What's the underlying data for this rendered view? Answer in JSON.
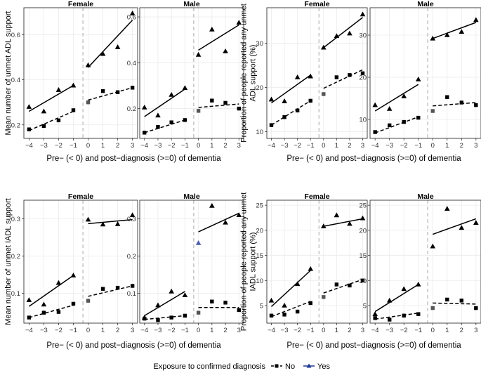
{
  "legend": {
    "title": "Exposure to confirmed diagnosis",
    "no_label": "No",
    "yes_label": "Yes",
    "colors": {
      "no": "#000000",
      "yes": "#1f3a93"
    }
  },
  "style": {
    "panel_border": "#333333",
    "grid_color": "#ebebeb",
    "reference_line_color": "#bbbbbb",
    "mark_color": "#000000"
  },
  "chart_data": [
    {
      "type": "line",
      "id": "adl-mean",
      "ylabel": "Mean number of unmet ADL support",
      "xlabel": "Pre− (< 0) and post−diagnosis (>=0) of dementia",
      "x": [
        -4,
        -3,
        -2,
        -1,
        0,
        1,
        2,
        3
      ],
      "xticks": [
        "−4",
        "−3",
        "−2",
        "−1",
        "0",
        "1",
        "2",
        "3"
      ],
      "facets": [
        {
          "title": "Female",
          "ylim": [
            0.14,
            0.72
          ],
          "yticks": [
            0.2,
            0.4,
            0.6
          ],
          "yticklabels": [
            "0.2",
            "0.4",
            "0.6"
          ],
          "series": [
            {
              "name": "No",
              "values": [
                0.18,
                0.195,
                0.22,
                0.265,
                0.3,
                0.35,
                0.345,
                0.365
              ],
              "pre_fit": [
                0.175,
                0.26
              ],
              "post_fit": [
                0.31,
                0.365
              ]
            },
            {
              "name": "Yes",
              "values": [
                0.28,
                0.26,
                0.355,
                0.375,
                0.465,
                0.515,
                0.545,
                0.695
              ],
              "pre_fit": [
                0.26,
                0.375
              ],
              "post_fit": [
                0.455,
                0.665
              ]
            }
          ]
        },
        {
          "title": "Male",
          "ylim": [
            0.07,
            0.64
          ],
          "yticks": [
            0.2,
            0.4,
            0.6
          ],
          "yticklabels": [
            "0.2",
            "0.4",
            "0.6"
          ],
          "series": [
            {
              "name": "No",
              "values": [
                0.095,
                0.12,
                0.14,
                0.15,
                0.19,
                0.235,
                0.225,
                0.2
              ],
              "pre_fit": [
                0.095,
                0.15
              ],
              "post_fit": [
                0.205,
                0.22
              ]
            },
            {
              "name": "Yes",
              "values": [
                0.205,
                0.17,
                0.26,
                0.29,
                0.435,
                0.545,
                0.45,
                0.575
              ],
              "pre_fit": [
                0.165,
                0.285
              ],
              "post_fit": [
                0.455,
                0.565
              ]
            }
          ]
        }
      ]
    },
    {
      "type": "line",
      "id": "adl-prop",
      "ylabel": "Proportion of people reported any unmet ADL support (%)",
      "xlabel": "Pre− (< 0) and post−diagnosis (>=0) of dementia",
      "x": [
        -4,
        -3,
        -2,
        -1,
        0,
        1,
        2,
        3
      ],
      "xticks": [
        "−4",
        "−3",
        "−2",
        "−1",
        "0",
        "1",
        "2",
        "3"
      ],
      "facets": [
        {
          "title": "Female",
          "ylim": [
            8.5,
            38
          ],
          "yticks": [
            10,
            20,
            30
          ],
          "yticklabels": [
            "10",
            "20",
            "30"
          ],
          "series": [
            {
              "name": "No",
              "values": [
                11.5,
                13.3,
                14.8,
                17.0,
                18.5,
                22.3,
                22.8,
                23.2
              ],
              "pre_fit": [
                11.5,
                17.0
              ],
              "post_fit": [
                19.8,
                24.0
              ]
            },
            {
              "name": "Yes",
              "values": [
                17.3,
                16.9,
                22.3,
                22.5,
                29.0,
                31.6,
                32.2,
                36.5
              ],
              "pre_fit": [
                16.5,
                22.8
              ],
              "post_fit": [
                29.0,
                35.8
              ]
            }
          ]
        },
        {
          "title": "Male",
          "ylim": [
            5.5,
            36.5
          ],
          "yticks": [
            10,
            20,
            30
          ],
          "yticklabels": [
            "10",
            "20",
            "30"
          ],
          "series": [
            {
              "name": "No",
              "values": [
                7.0,
                8.6,
                9.4,
                10.4,
                12.0,
                15.3,
                14.0,
                13.4
              ],
              "pre_fit": [
                6.8,
                10.6
              ],
              "post_fit": [
                13.2,
                14.0
              ]
            },
            {
              "name": "Yes",
              "values": [
                13.4,
                12.5,
                15.5,
                19.5,
                29.2,
                30.0,
                30.8,
                33.6
              ],
              "pre_fit": [
                12.0,
                18.3
              ],
              "post_fit": [
                29.2,
                33.0
              ]
            }
          ]
        }
      ]
    },
    {
      "type": "line",
      "id": "iadl-mean",
      "ylabel": "Mean number of unmet IADL support",
      "xlabel": "Pre− (< 0) and post−diagnosis (>=0) of dementia",
      "x": [
        -4,
        -3,
        -2,
        -1,
        0,
        1,
        2,
        3
      ],
      "xticks": [
        "−4",
        "−3",
        "−2",
        "−1",
        "0",
        "1",
        "2",
        "3"
      ],
      "facets": [
        {
          "title": "Female",
          "ylim": [
            0.02,
            0.35
          ],
          "yticks": [
            0.1,
            0.2,
            0.3
          ],
          "yticklabels": [
            "0.1",
            "0.2",
            "0.3"
          ],
          "series": [
            {
              "name": "No",
              "values": [
                0.035,
                0.048,
                0.05,
                0.072,
                0.08,
                0.112,
                0.115,
                0.12
              ],
              "pre_fit": [
                0.035,
                0.068
              ],
              "post_fit": [
                0.092,
                0.12
              ]
            },
            {
              "name": "Yes",
              "values": [
                0.082,
                0.07,
                0.128,
                0.148,
                0.298,
                0.285,
                0.286,
                0.31
              ],
              "pre_fit": [
                0.065,
                0.148
              ],
              "post_fit": [
                0.287,
                0.298
              ]
            }
          ]
        },
        {
          "title": "Male",
          "ylim": [
            0.02,
            0.35
          ],
          "yticks": [
            0.1,
            0.2,
            0.3
          ],
          "yticklabels": [
            "0.1",
            "0.2",
            "0.3"
          ],
          "series": [
            {
              "name": "No",
              "values": [
                0.032,
                0.028,
                0.035,
                0.04,
                0.048,
                0.078,
                0.075,
                0.055
              ],
              "pre_fit": [
                0.03,
                0.04
              ],
              "post_fit": [
                0.062,
                0.062
              ]
            },
            {
              "name": "Yes",
              "values": [
                0.035,
                0.068,
                0.105,
                0.095,
                0.235,
                0.335,
                0.29,
                0.31
              ],
              "pre_fit": [
                0.04,
                0.105
              ],
              "post_fit": [
                0.265,
                0.315
              ]
            }
          ]
        }
      ]
    },
    {
      "type": "line",
      "id": "iadl-prop",
      "ylabel": "Proportion of people reported any unmet IADL support (%)",
      "xlabel": "Pre− (< 0) and post−diagnosis (>=0) of dementia",
      "x": [
        -4,
        -3,
        -2,
        -1,
        0,
        1,
        2,
        3
      ],
      "xticks": [
        "−4",
        "−3",
        "−2",
        "−1",
        "0",
        "1",
        "2",
        "3"
      ],
      "facets": [
        {
          "title": "Female",
          "ylim": [
            1.5,
            26
          ],
          "yticks": [
            5,
            10,
            15,
            20,
            25
          ],
          "yticklabels": [
            "5",
            "10",
            "15",
            "20",
            "25"
          ],
          "series": [
            {
              "name": "No",
              "values": [
                3.0,
                3.2,
                3.8,
                5.5,
                6.7,
                9.2,
                9.0,
                10.0
              ],
              "pre_fit": [
                2.8,
                5.8
              ],
              "post_fit": [
                7.5,
                10.2
              ]
            },
            {
              "name": "Yes",
              "values": [
                6.0,
                5.0,
                9.3,
                12.3,
                20.8,
                23.0,
                21.3,
                22.4
              ],
              "pre_fit": [
                4.8,
                12.0
              ],
              "post_fit": [
                20.8,
                22.3
              ]
            }
          ]
        },
        {
          "title": "Male",
          "ylim": [
            1.5,
            26
          ],
          "yticks": [
            5,
            10,
            15,
            20,
            25
          ],
          "yticklabels": [
            "5",
            "10",
            "15",
            "20",
            "25"
          ],
          "series": [
            {
              "name": "No",
              "values": [
                2.5,
                2.2,
                3.0,
                3.3,
                4.5,
                6.2,
                6.0,
                4.5
              ],
              "pre_fit": [
                2.3,
                3.5
              ],
              "post_fit": [
                5.5,
                5.3
              ]
            },
            {
              "name": "Yes",
              "values": [
                3.3,
                6.0,
                8.3,
                9.2,
                16.8,
                24.3,
                20.5,
                21.5
              ],
              "pre_fit": [
                3.8,
                9.2
              ],
              "post_fit": [
                19.2,
                22.3
              ]
            }
          ]
        }
      ]
    }
  ]
}
